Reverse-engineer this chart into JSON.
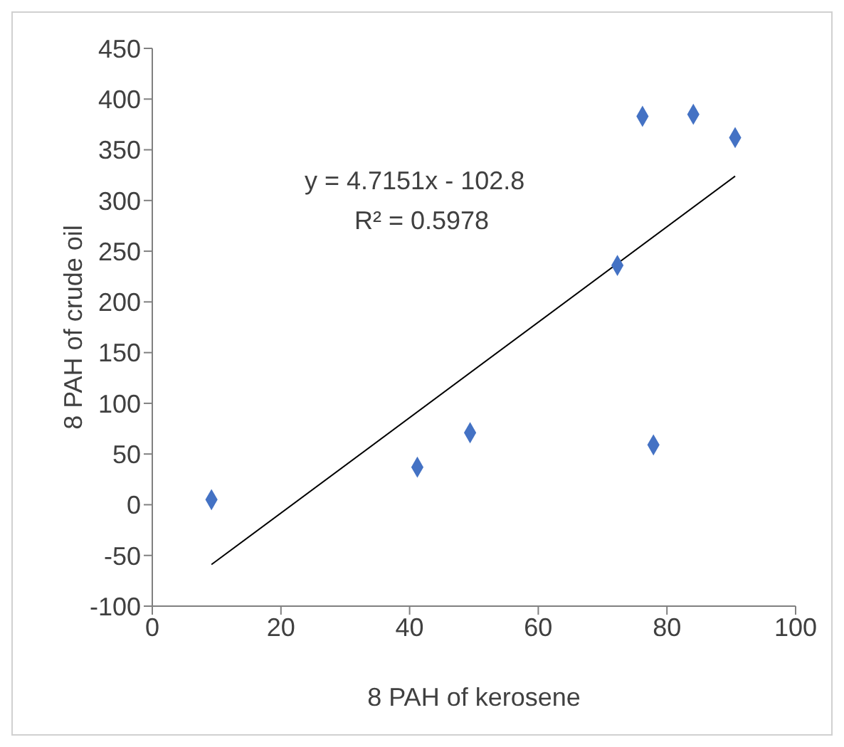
{
  "chart_data": {
    "type": "scatter",
    "xlabel": "8 PAH of kerosene",
    "ylabel": "8 PAH of crude oil",
    "annotations": [
      "y = 4.7151x - 102.8",
      "R² = 0.5978"
    ],
    "xlim": [
      0,
      100
    ],
    "xticks": [
      0,
      20,
      40,
      60,
      80,
      100
    ],
    "ylim": [
      -100,
      450
    ],
    "yticks": [
      -100,
      -50,
      0,
      50,
      100,
      150,
      200,
      250,
      300,
      350,
      400,
      450
    ],
    "grid": false,
    "series": [
      {
        "marker": "diamond",
        "color": "#4472c4",
        "x": [
          9.2,
          41.2,
          49.4,
          72.3,
          76.2,
          84.1,
          90.6,
          77.9
        ],
        "values": [
          5,
          37,
          71,
          236,
          383,
          385,
          362,
          59
        ]
      },
      {
        "type": "line",
        "color": "#000000",
        "x": [
          9.2,
          90.6
        ],
        "values": [
          -59,
          324
        ]
      }
    ]
  }
}
